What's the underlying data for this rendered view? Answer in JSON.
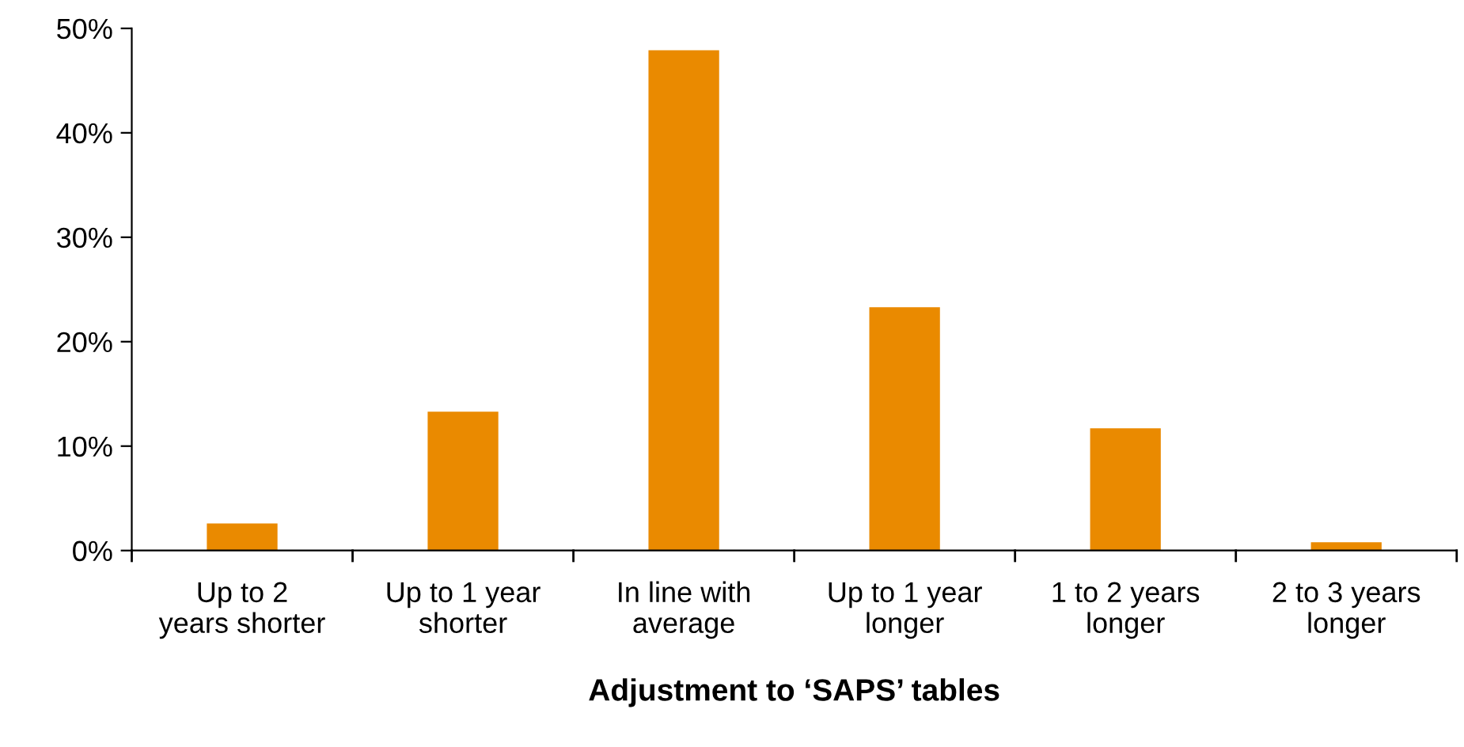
{
  "chart_data": {
    "type": "bar",
    "xlabel": "Adjustment to ‘SAPS’ tables",
    "categories": [
      "Up to 2\nyears shorter",
      "Up to 1 year\nshorter",
      "In line with\naverage",
      "Up to 1 year\nlonger",
      "1 to 2 years\nlonger",
      "2 to 3 years\nlonger"
    ],
    "values": [
      2.6,
      13.3,
      47.9,
      23.3,
      11.7,
      0.8
    ],
    "color": "#ea8a00",
    "ylim": [
      0,
      50
    ],
    "yticks": [
      {
        "value": 0,
        "label": "0%"
      },
      {
        "value": 10,
        "label": "10%"
      },
      {
        "value": 20,
        "label": "20%"
      },
      {
        "value": 30,
        "label": "30%"
      },
      {
        "value": 40,
        "label": "40%"
      },
      {
        "value": 50,
        "label": "50%"
      }
    ],
    "grid": false,
    "legend": false
  }
}
